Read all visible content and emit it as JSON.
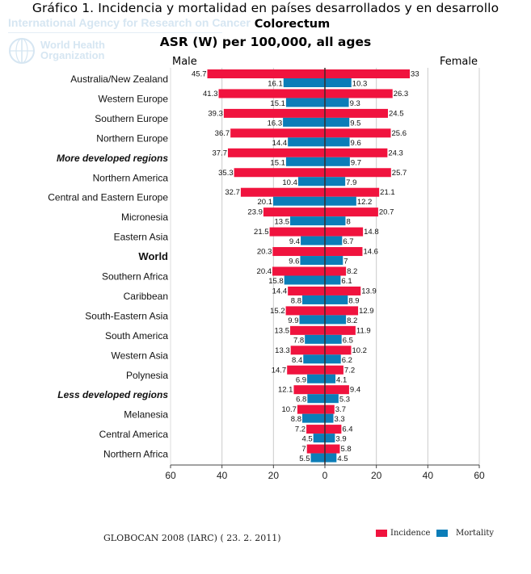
{
  "page": {
    "title": "Gráfico 1. Incidencia y mortalidad en países desarrollados y en desarrollo",
    "watermark_agency": "International Agency for Research on Cancer",
    "watermark_who_line1": "World Health",
    "watermark_who_line2": "Organization",
    "source": "GLOBOCAN 2008 (IARC) ( 23. 2. 2011)"
  },
  "colors": {
    "incidence": "#f0133e",
    "mortality": "#0b7db8",
    "grid": "#cccccc",
    "center_line": "#3a2a2a"
  },
  "chart_data": {
    "type": "bar",
    "orientation": "horizontal-population-pyramid",
    "title": "Colorectum",
    "subtitle": "ASR (W) per 100,000, all ages",
    "left_label": "Male",
    "right_label": "Female",
    "xlim": [
      -60,
      60
    ],
    "x_ticks": [
      -60,
      -40,
      -20,
      0,
      20,
      40,
      60
    ],
    "x_tick_labels": [
      "60",
      "40",
      "20",
      "0",
      "20",
      "40",
      "60"
    ],
    "grid": true,
    "legend": {
      "position": "bottom-right",
      "entries": [
        {
          "name": "Incidence",
          "color": "#f0133e"
        },
        {
          "name": "Mortality",
          "color": "#0b7db8"
        }
      ]
    },
    "categories": [
      {
        "label": "Australia/New Zealand",
        "emphasis": "normal"
      },
      {
        "label": "Western Europe",
        "emphasis": "normal"
      },
      {
        "label": "Southern Europe",
        "emphasis": "normal"
      },
      {
        "label": "Northern Europe",
        "emphasis": "normal"
      },
      {
        "label": "More developed regions",
        "emphasis": "bold-italic"
      },
      {
        "label": "Northern America",
        "emphasis": "normal"
      },
      {
        "label": "Central and Eastern Europe",
        "emphasis": "normal"
      },
      {
        "label": "Micronesia",
        "emphasis": "normal"
      },
      {
        "label": "Eastern Asia",
        "emphasis": "normal"
      },
      {
        "label": "World",
        "emphasis": "bold"
      },
      {
        "label": "Southern Africa",
        "emphasis": "normal"
      },
      {
        "label": "Caribbean",
        "emphasis": "normal"
      },
      {
        "label": "South-Eastern Asia",
        "emphasis": "normal"
      },
      {
        "label": "South America",
        "emphasis": "normal"
      },
      {
        "label": "Western Asia",
        "emphasis": "normal"
      },
      {
        "label": "Polynesia",
        "emphasis": "normal"
      },
      {
        "label": "Less developed regions",
        "emphasis": "bold-italic"
      },
      {
        "label": "Melanesia",
        "emphasis": "normal"
      },
      {
        "label": "Central America",
        "emphasis": "normal"
      },
      {
        "label": "Northern Africa",
        "emphasis": "normal"
      }
    ],
    "series": [
      {
        "name": "Male Incidence",
        "side": "male",
        "measure": "Incidence",
        "values": [
          45.7,
          41.3,
          39.3,
          36.7,
          37.7,
          35.3,
          32.7,
          23.9,
          21.5,
          20.3,
          20.4,
          14.4,
          15.2,
          13.5,
          13.3,
          14.7,
          12.1,
          10.7,
          7.2,
          7
        ]
      },
      {
        "name": "Male Mortality",
        "side": "male",
        "measure": "Mortality",
        "values": [
          16.1,
          15.1,
          16.3,
          14.4,
          15.1,
          10.4,
          20.1,
          13.5,
          9.4,
          9.6,
          15.8,
          8.8,
          9.9,
          7.8,
          8.4,
          6.9,
          6.8,
          8.8,
          4.5,
          5.5
        ]
      },
      {
        "name": "Female Incidence",
        "side": "female",
        "measure": "Incidence",
        "values": [
          33,
          26.3,
          24.5,
          25.6,
          24.3,
          25.7,
          21.1,
          20.7,
          14.8,
          14.6,
          8.2,
          13.9,
          12.9,
          11.9,
          10.2,
          7.2,
          9.4,
          3.7,
          6.4,
          5.8
        ]
      },
      {
        "name": "Female Mortality",
        "side": "female",
        "measure": "Mortality",
        "values": [
          10.3,
          9.3,
          9.5,
          9.6,
          9.7,
          7.9,
          12.2,
          8,
          6.7,
          7,
          6.1,
          8.9,
          8.2,
          6.5,
          6.2,
          4.1,
          5.3,
          3.3,
          3.9,
          4.5
        ]
      }
    ]
  }
}
